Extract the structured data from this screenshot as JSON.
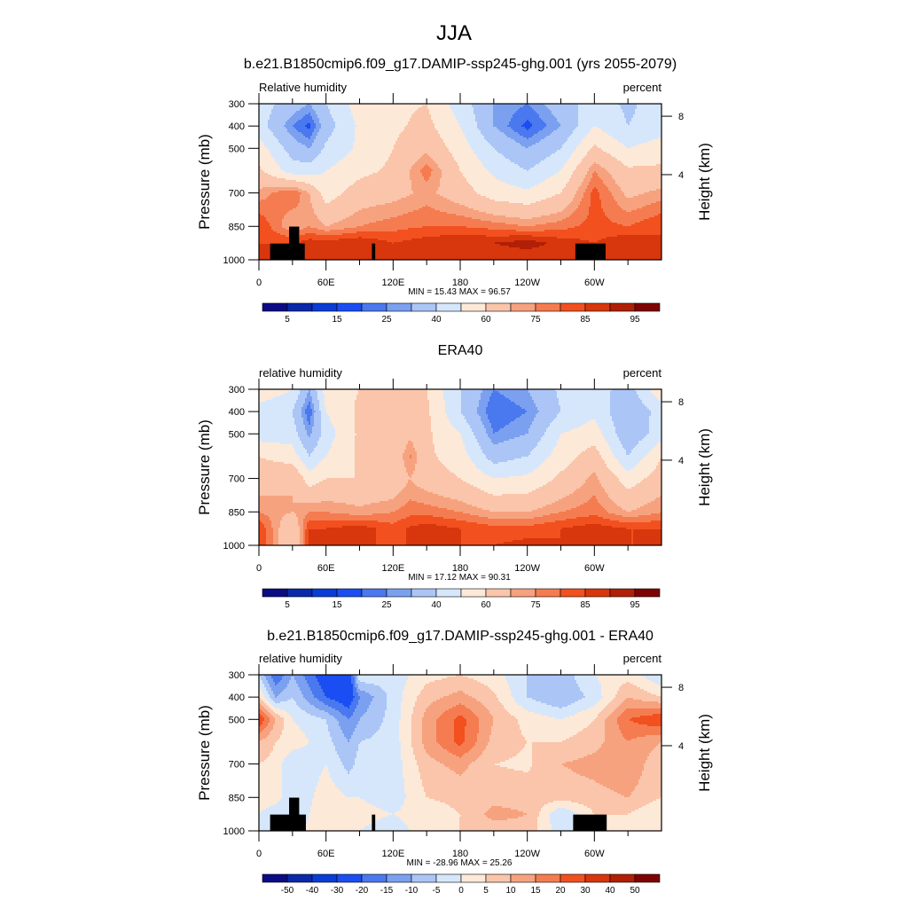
{
  "title": "JJA",
  "colors": [
    "#0b0b86",
    "#0a28a8",
    "#0a3cd6",
    "#1b4ef2",
    "#4a78ef",
    "#7ba0f0",
    "#abc5f6",
    "#d6e7fb",
    "#fde9d8",
    "#fac5aa",
    "#f7a27f",
    "#f57c50",
    "#f2501f",
    "#d8360c",
    "#b01f06",
    "#7e0303"
  ],
  "land_color": "#000000",
  "chart_data": [
    {
      "type": "heatmap",
      "title": "b.e21.B1850cmip6.f09_g17.DAMIP-ssp245-ghg.001 (yrs 2055-2079)",
      "left_label": "Relative humidity",
      "right_label": "percent",
      "ylabel": "Pressure (mb)",
      "y2label": "Height (km)",
      "stats": "MIN =  15.43  MAX =  96.57",
      "xticks": [
        "0",
        "60E",
        "120E",
        "180",
        "120W",
        "60W"
      ],
      "xtick_values": [
        0,
        60,
        120,
        180,
        240,
        300
      ],
      "yticks": [
        "300",
        "400",
        "500",
        "700",
        "850",
        "1000"
      ],
      "ytick_values": [
        300,
        400,
        500,
        700,
        850,
        1000
      ],
      "y2ticks": [
        "8",
        "4"
      ],
      "y2tick_pressures": [
        356,
        618
      ],
      "xlim": [
        0,
        360
      ],
      "ylim": [
        300,
        1000
      ],
      "levels": [
        5,
        10,
        15,
        20,
        25,
        30,
        40,
        50,
        60,
        70,
        75,
        80,
        85,
        90,
        95
      ],
      "colorbar_labels": [
        "5",
        "15",
        "25",
        "40",
        "60",
        "75",
        "85",
        "95"
      ],
      "colorbar_label_levels": [
        0,
        2,
        4,
        6,
        8,
        10,
        12,
        14
      ],
      "lon": [
        0,
        30,
        45,
        60,
        90,
        120,
        150,
        180,
        210,
        240,
        270,
        300,
        330,
        360
      ],
      "pressure": [
        300,
        400,
        500,
        600,
        700,
        850,
        925,
        1000
      ],
      "values": [
        [
          45,
          35,
          30,
          40,
          55,
          58,
          60,
          45,
          30,
          25,
          35,
          45,
          38,
          45
        ],
        [
          45,
          25,
          18,
          35,
          52,
          58,
          63,
          50,
          30,
          18,
          30,
          50,
          40,
          45
        ],
        [
          55,
          35,
          30,
          42,
          52,
          60,
          68,
          55,
          40,
          30,
          40,
          62,
          50,
          55
        ],
        [
          62,
          45,
          45,
          50,
          57,
          62,
          78,
          60,
          48,
          40,
          50,
          75,
          62,
          62
        ],
        [
          72,
          80,
          70,
          55,
          65,
          67,
          72,
          65,
          55,
          52,
          60,
          82,
          68,
          72
        ],
        [
          85,
          70,
          75,
          70,
          75,
          78,
          80,
          80,
          78,
          75,
          78,
          82,
          80,
          85
        ],
        [
          85,
          85,
          88,
          88,
          90,
          85,
          88,
          90,
          90,
          93,
          88,
          85,
          90,
          85
        ],
        [
          85,
          85,
          85,
          85,
          85,
          85,
          85,
          85,
          85,
          85,
          85,
          85,
          85,
          85
        ]
      ],
      "land": [
        {
          "lon": [
            10,
            41
          ],
          "p": [
            927,
            1000
          ]
        },
        {
          "lon": [
            27,
            36
          ],
          "p": [
            851,
            1000
          ]
        },
        {
          "lon": [
            101,
            104
          ],
          "p": [
            927,
            1000
          ]
        },
        {
          "lon": [
            283,
            310
          ],
          "p": [
            927,
            1000
          ]
        }
      ]
    },
    {
      "type": "heatmap",
      "title": "ERA40",
      "left_label": "relative humidity",
      "right_label": "percent",
      "ylabel": "Pressure (mb)",
      "y2label": "Height (km)",
      "stats": "MIN =  17.12  MAX =  90.31",
      "xticks": [
        "0",
        "60E",
        "120E",
        "180",
        "120W",
        "60W"
      ],
      "xtick_values": [
        0,
        60,
        120,
        180,
        240,
        300
      ],
      "yticks": [
        "300",
        "400",
        "500",
        "700",
        "850",
        "1000"
      ],
      "ytick_values": [
        300,
        400,
        500,
        700,
        850,
        1000
      ],
      "y2ticks": [
        "8",
        "4"
      ],
      "y2tick_pressures": [
        356,
        618
      ],
      "xlim": [
        0,
        360
      ],
      "ylim": [
        300,
        1000
      ],
      "levels": [
        5,
        10,
        15,
        20,
        25,
        30,
        40,
        50,
        60,
        70,
        75,
        80,
        85,
        90,
        95
      ],
      "colorbar_labels": [
        "5",
        "15",
        "25",
        "40",
        "60",
        "75",
        "85",
        "95"
      ],
      "colorbar_label_levels": [
        0,
        2,
        4,
        6,
        8,
        10,
        12,
        14
      ],
      "lon": [
        0,
        30,
        45,
        60,
        90,
        120,
        135,
        150,
        180,
        210,
        240,
        270,
        300,
        330,
        360
      ],
      "pressure": [
        300,
        400,
        500,
        600,
        700,
        850,
        925,
        1000
      ],
      "values": [
        [
          58,
          50,
          30,
          55,
          60,
          65,
          62,
          60,
          40,
          25,
          30,
          42,
          45,
          35,
          58
        ],
        [
          45,
          40,
          20,
          50,
          62,
          62,
          62,
          62,
          40,
          20,
          25,
          40,
          48,
          30,
          45
        ],
        [
          45,
          45,
          28,
          45,
          62,
          60,
          68,
          62,
          50,
          25,
          30,
          50,
          55,
          32,
          45
        ],
        [
          60,
          55,
          40,
          50,
          62,
          62,
          76,
          62,
          55,
          35,
          40,
          55,
          65,
          40,
          60
        ],
        [
          65,
          70,
          55,
          60,
          60,
          62,
          70,
          65,
          60,
          50,
          52,
          62,
          72,
          55,
          65
        ],
        [
          75,
          70,
          75,
          75,
          72,
          75,
          78,
          78,
          75,
          70,
          70,
          75,
          78,
          70,
          75
        ],
        [
          85,
          60,
          85,
          85,
          88,
          82,
          86,
          88,
          85,
          82,
          82,
          85,
          88,
          85,
          85
        ],
        [
          85,
          60,
          85,
          85,
          85,
          85,
          85,
          85,
          85,
          85,
          87,
          85,
          85,
          85,
          85
        ]
      ],
      "land": []
    },
    {
      "type": "heatmap",
      "title": "b.e21.B1850cmip6.f09_g17.DAMIP-ssp245-ghg.001 - ERA40",
      "left_label": "relative humidity",
      "right_label": "percent",
      "ylabel": "Pressure (mb)",
      "y2label": "Height (km)",
      "stats": "MIN = -28.96  MAX =  25.26",
      "xticks": [
        "0",
        "60E",
        "120E",
        "180",
        "120W",
        "60W"
      ],
      "xtick_values": [
        0,
        60,
        120,
        180,
        240,
        300
      ],
      "yticks": [
        "300",
        "400",
        "500",
        "700",
        "850",
        "1000"
      ],
      "ytick_values": [
        300,
        400,
        500,
        700,
        850,
        1000
      ],
      "y2ticks": [
        "8",
        "4"
      ],
      "y2tick_pressures": [
        356,
        618
      ],
      "xlim": [
        0,
        360
      ],
      "ylim": [
        300,
        1000
      ],
      "levels": [
        -50,
        -40,
        -30,
        -20,
        -15,
        -10,
        -5,
        0,
        5,
        10,
        15,
        20,
        30,
        40,
        50
      ],
      "colorbar_labels": [
        "-50",
        "-40",
        "-30",
        "-20",
        "-15",
        "-10",
        "-5",
        "0",
        "5",
        "10",
        "15",
        "20",
        "30",
        "40",
        "50"
      ],
      "colorbar_label_levels": [
        0,
        1,
        2,
        3,
        4,
        5,
        6,
        7,
        8,
        9,
        10,
        11,
        12,
        13,
        14
      ],
      "lon": [
        0,
        15,
        30,
        60,
        80,
        90,
        120,
        150,
        180,
        210,
        240,
        270,
        300,
        330,
        360
      ],
      "pressure": [
        300,
        400,
        500,
        600,
        700,
        850,
        925,
        1000
      ],
      "values": [
        [
          -5,
          -20,
          -10,
          -25,
          -28,
          0,
          -3,
          3,
          5,
          2,
          -5,
          -8,
          0,
          3,
          -5
        ],
        [
          5,
          -10,
          -5,
          -20,
          -25,
          -15,
          -3,
          8,
          12,
          6,
          -5,
          -10,
          -3,
          10,
          5
        ],
        [
          25,
          10,
          0,
          -5,
          -15,
          -10,
          -3,
          12,
          22,
          10,
          3,
          0,
          5,
          20,
          25
        ],
        [
          10,
          5,
          3,
          -3,
          -10,
          -5,
          -3,
          12,
          22,
          8,
          5,
          5,
          8,
          15,
          10
        ],
        [
          5,
          3,
          -5,
          0,
          -7,
          -3,
          -3,
          8,
          12,
          5,
          4,
          10,
          12,
          15,
          5
        ],
        [
          5,
          3,
          -5,
          3,
          0,
          0,
          -3,
          5,
          6,
          8,
          8,
          7,
          8,
          10,
          5
        ],
        [
          0,
          -5,
          -5,
          5,
          3,
          2,
          0,
          3,
          5,
          12,
          10,
          -5,
          5,
          5,
          0
        ],
        [
          0,
          0,
          0,
          2,
          2,
          0,
          -3,
          3,
          5,
          7,
          8,
          -3,
          3,
          3,
          0
        ]
      ],
      "land": [
        {
          "lon": [
            10,
            42
          ],
          "p": [
            927,
            1000
          ]
        },
        {
          "lon": [
            27,
            36
          ],
          "p": [
            851,
            1000
          ]
        },
        {
          "lon": [
            101,
            104
          ],
          "p": [
            927,
            1000
          ]
        },
        {
          "lon": [
            281,
            311
          ],
          "p": [
            927,
            1000
          ]
        }
      ]
    }
  ]
}
